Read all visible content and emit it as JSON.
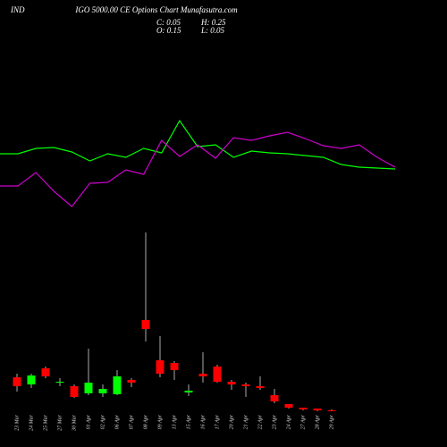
{
  "chart_data": {
    "type": "candlestick",
    "title": "IND",
    "subtitle": "IGO 5000.00 CE Options  Chart Munafasutra.com",
    "ohlc_labels": {
      "close": "C: 0.05",
      "high": "H: 0.25",
      "open": "O: 0.15",
      "low": "L: 0.05"
    },
    "categories": [
      "23 Mar",
      "24 Mar",
      "25 Mar",
      "27 Mar",
      "30 Mar",
      "01 Apr",
      "02 Apr",
      "06 Apr",
      "07 Apr",
      "08 Apr",
      "09 Apr",
      "13 Apr",
      "15 Apr",
      "16 Apr",
      "17 Apr",
      "20 Apr",
      "21 Apr",
      "22 Apr",
      "23 Apr",
      "24 Apr",
      "27 Apr",
      "28 Apr",
      "29 Apr"
    ],
    "open": [
      3.85,
      3.05,
      4.85,
      3.25,
      2.85,
      2.05,
      2.05,
      1.95,
      3.55,
      10.25,
      5.75,
      5.45,
      2.15,
      4.25,
      5.05,
      3.35,
      3.05,
      2.85,
      1.85,
      0.85,
      0.45,
      0.35,
      0.15
    ],
    "high": [
      4.25,
      4.25,
      5.05,
      3.75,
      3.05,
      7.05,
      3.05,
      4.65,
      3.75,
      20.05,
      8.45,
      5.65,
      3.05,
      6.65,
      5.25,
      3.55,
      3.25,
      3.95,
      2.55,
      0.85,
      0.45,
      0.35,
      0.25
    ],
    "low": [
      2.25,
      2.65,
      3.75,
      2.85,
      1.55,
      1.85,
      1.65,
      1.85,
      2.75,
      7.85,
      3.85,
      3.55,
      1.75,
      3.25,
      3.25,
      2.45,
      1.65,
      2.45,
      0.95,
      0.35,
      0.15,
      0.05,
      0.05
    ],
    "close": [
      2.85,
      4.05,
      3.95,
      3.35,
      1.65,
      3.25,
      2.55,
      3.95,
      3.25,
      9.25,
      4.25,
      4.65,
      2.35,
      3.95,
      3.35,
      3.05,
      2.85,
      2.65,
      1.15,
      0.45,
      0.25,
      0.15,
      0.05
    ],
    "up_color": "#00ff00",
    "down_color": "#ff0000",
    "ylim": [
      0,
      22
    ],
    "series": [
      {
        "color": "#00ff00",
        "axis": "y2",
        "values": [
          68,
          68,
          74,
          75,
          70,
          60,
          68,
          64,
          74,
          69,
          105,
          76,
          78,
          64,
          71,
          69,
          68,
          66,
          64,
          56,
          53,
          52,
          51
        ]
      },
      {
        "color": "#cc00cc",
        "axis": "y2",
        "values": [
          32,
          32,
          47,
          26,
          9,
          35,
          36,
          50,
          45,
          83,
          65,
          78,
          63,
          86,
          83,
          88,
          92,
          85,
          77,
          74,
          78,
          64,
          53
        ]
      }
    ],
    "y2lim": [
      0,
      120
    ]
  }
}
